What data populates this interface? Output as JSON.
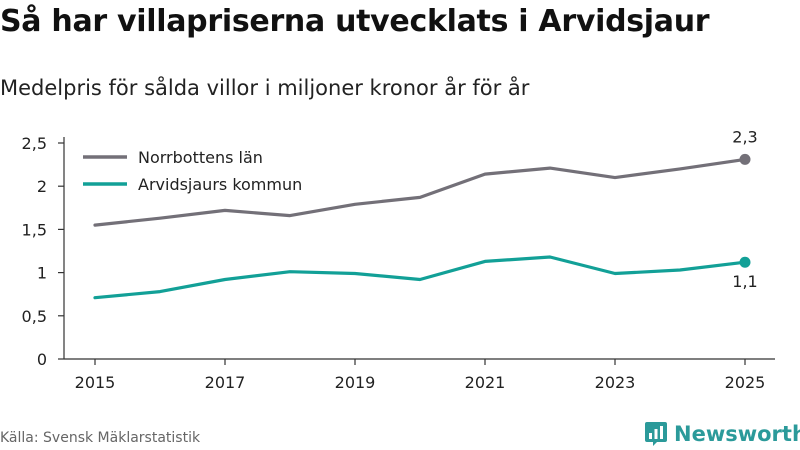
{
  "title": "Så har villapriserna utvecklats i Arvidsjaur",
  "subtitle": "Medelpris för sålda villor i miljoner kronor år för år",
  "source": "Källa: Svensk Mäklarstatistik",
  "brand": {
    "name": "Newsworthy",
    "icon": "newsworthy-logo-icon"
  },
  "colors": {
    "norrbotten": "#737078",
    "arvidsjaur": "#12a097",
    "axis": "#333333",
    "brand": "#2b9a9a"
  },
  "chart_data": {
    "type": "line",
    "title": "Så har villapriserna utvecklats i Arvidsjaur",
    "subtitle": "Medelpris för sålda villor i miljoner kronor år för år",
    "xlabel": "",
    "ylabel": "",
    "x": [
      2015,
      2016,
      2017,
      2018,
      2019,
      2020,
      2021,
      2022,
      2023,
      2024,
      2025
    ],
    "xticks": [
      2015,
      2017,
      2019,
      2021,
      2023,
      2025
    ],
    "xtick_labels": [
      "2015",
      "2017",
      "2019",
      "2021",
      "2023",
      "2025"
    ],
    "yticks": [
      0,
      0.5,
      1,
      1.5,
      2,
      2.5
    ],
    "ytick_labels": [
      "0",
      "0,5",
      "1",
      "1,5",
      "2",
      "2,5"
    ],
    "ylim": [
      0,
      2.5
    ],
    "xlim": [
      2015,
      2025
    ],
    "grid": false,
    "legend_position": "top-left",
    "series": [
      {
        "name": "Norrbottens län",
        "color_key": "norrbotten",
        "values": [
          1.55,
          1.63,
          1.72,
          1.66,
          1.79,
          1.87,
          2.14,
          2.21,
          2.1,
          2.2,
          2.31
        ],
        "end_label": "2,3"
      },
      {
        "name": "Arvidsjaurs kommun",
        "color_key": "arvidsjaur",
        "values": [
          0.71,
          0.78,
          0.92,
          1.01,
          0.99,
          0.92,
          1.13,
          1.18,
          0.99,
          1.03,
          1.12
        ],
        "end_label": "1,1"
      }
    ]
  }
}
